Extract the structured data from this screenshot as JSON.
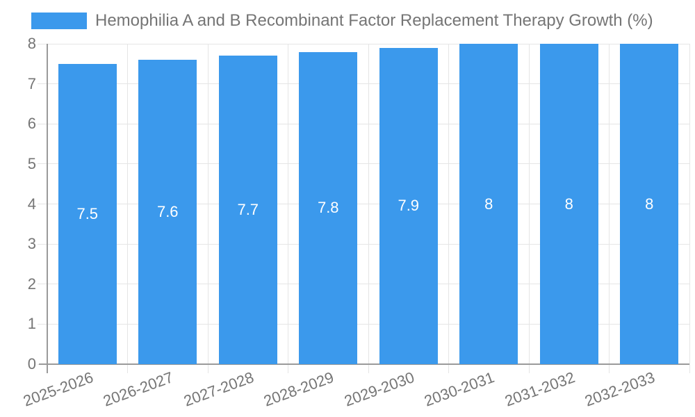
{
  "chart_data": {
    "type": "bar",
    "title": "Hemophilia A and B Recombinant Factor Replacement Therapy Growth (%)",
    "categories": [
      "2025-2026",
      "2026-2027",
      "2027-2028",
      "2028-2029",
      "2029-2030",
      "2030-2031",
      "2031-2032",
      "2032-2033"
    ],
    "series": [
      {
        "name": "Hemophilia A and B Recombinant Factor Replacement Therapy Growth (%)",
        "values": [
          7.5,
          7.6,
          7.7,
          7.8,
          7.9,
          8,
          8,
          8
        ],
        "value_labels": [
          "7.5",
          "7.6",
          "7.7",
          "7.8",
          "7.9",
          "8",
          "8",
          "8"
        ]
      }
    ],
    "xlabel": "",
    "ylabel": "",
    "ylim": [
      0,
      8
    ],
    "yticks": [
      0,
      1,
      2,
      3,
      4,
      5,
      6,
      7,
      8
    ],
    "ytick_labels": [
      "0",
      "1",
      "2",
      "3",
      "4",
      "5",
      "6",
      "7",
      "8"
    ],
    "grid": true,
    "legend_position": "top-left",
    "colors": {
      "bar": "#3b99ec",
      "bar_value_label": "#ffffff",
      "axis_line": "#9a9a9a",
      "grid_line": "#e5e5e5",
      "text": "#757575",
      "background": "#ffffff"
    }
  }
}
